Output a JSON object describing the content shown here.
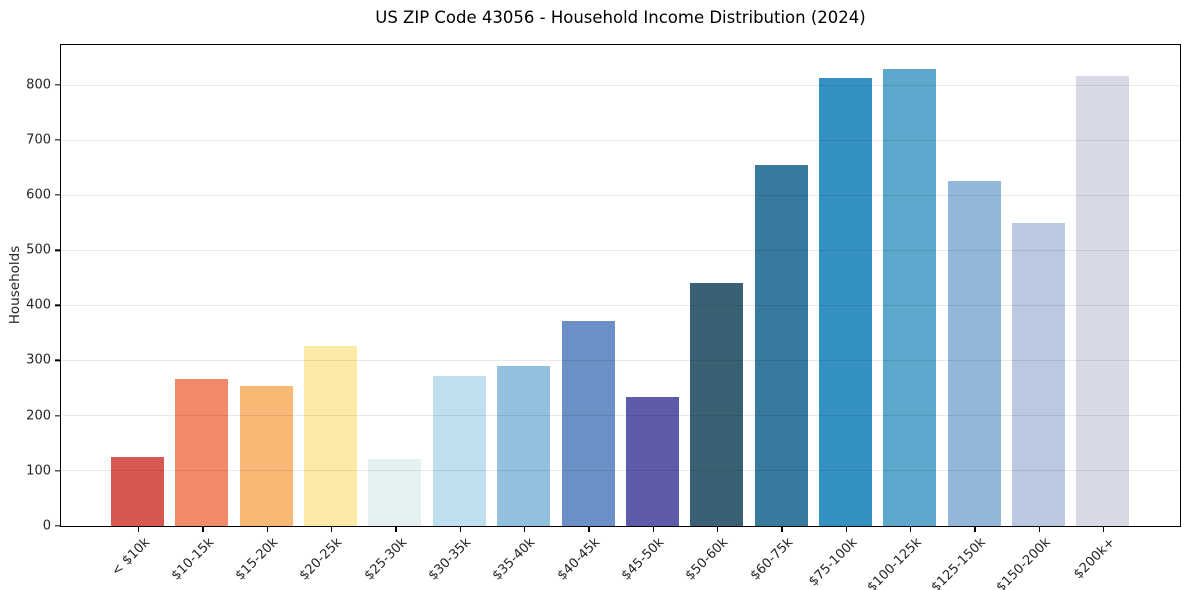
{
  "figure": {
    "background": "#ffffff",
    "text_color": "#262626",
    "spine_color": "#000000",
    "grid_color": "#e8e8e8"
  },
  "chart_data": {
    "type": "bar",
    "title": "US ZIP Code 43056 - Household Income Distribution (2024)",
    "xlabel": "",
    "ylabel": "Households",
    "categories": [
      "< $10k",
      "$10-15k",
      "$15-20k",
      "$20-25k",
      "$25-30k",
      "$30-35k",
      "$35-40k",
      "$40-45k",
      "$45-50k",
      "$50-60k",
      "$60-75k",
      "$75-100k",
      "$100-125k",
      "$125-150k",
      "$150-200k",
      "$200k+"
    ],
    "values": [
      126,
      266,
      255,
      326,
      121,
      273,
      290,
      372,
      234,
      442,
      655,
      814,
      830,
      626,
      550,
      816
    ],
    "bar_colors": [
      "#d75850",
      "#f28a69",
      "#fab877",
      "#fce9a6",
      "#e5f1f1",
      "#bedfee",
      "#94c0df",
      "#6a90c6",
      "#5e5bab",
      "#3a6173",
      "#377a9e",
      "#3590c4",
      "#5da7cd",
      "#93b7da",
      "#bac9e1",
      "#d7d9e7"
    ],
    "yticks": [
      0,
      100,
      200,
      300,
      400,
      500,
      600,
      700,
      800
    ],
    "ylim": [
      0,
      872
    ],
    "grid": "horizontal-only",
    "legend": "none",
    "x_tick_label_rotation_deg": 45
  }
}
